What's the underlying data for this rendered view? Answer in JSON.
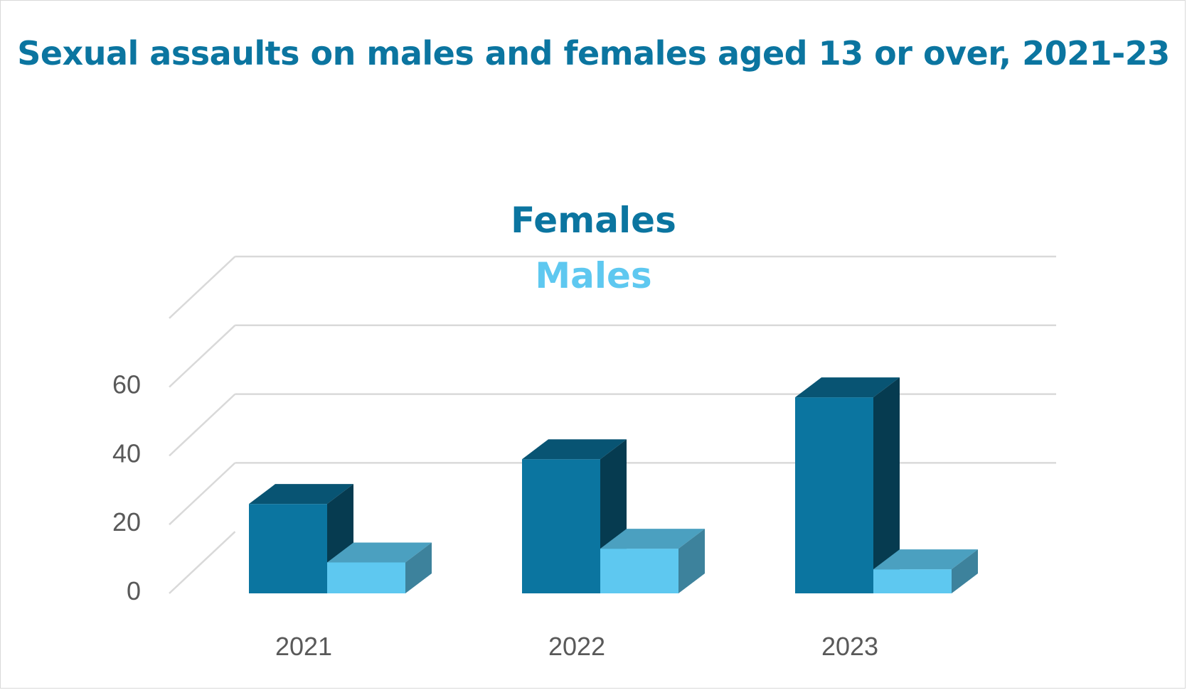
{
  "chart_data": {
    "type": "bar",
    "title": "Sexual assaults on males and females aged 13 or over, 2021-23",
    "categories": [
      "2021",
      "2022",
      "2023"
    ],
    "series": [
      {
        "name": "Females",
        "values": [
          26,
          39,
          57
        ],
        "color": "#0b75a0"
      },
      {
        "name": "Males",
        "values": [
          9,
          13,
          7
        ],
        "color": "#5ec8f0"
      }
    ],
    "y_ticks": [
      "0",
      "20",
      "40",
      "60"
    ],
    "ylim": [
      0,
      80
    ],
    "grid": true,
    "legend_position": "top",
    "style": "3d-columns"
  }
}
